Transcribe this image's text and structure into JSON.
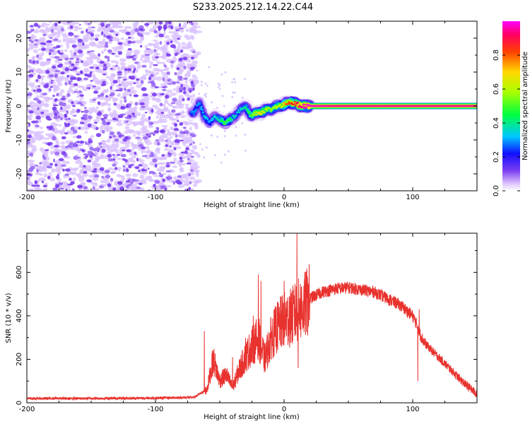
{
  "title": "S233.2025.212.14.22.C44",
  "colors": {
    "accent_line": "#e8322e",
    "scatter": "#7a3cf0",
    "background": "#ffffff"
  },
  "chart_data": [
    {
      "type": "heatmap",
      "xlabel": "Height of straight line (km)",
      "ylabel": "Frequency (Hz)",
      "xlim": [
        -200,
        150
      ],
      "ylim": [
        -25,
        25
      ],
      "xticks": [
        -200,
        -100,
        0,
        100
      ],
      "yticks": [
        -20,
        -10,
        0,
        10,
        20
      ],
      "xtick_labels": [
        "-200",
        "-100",
        "0",
        "100"
      ],
      "ytick_labels": [
        "-20",
        "-10",
        "0",
        "10",
        "20"
      ],
      "ridge": {
        "x": [
          -70,
          -66,
          -62,
          -58,
          -54,
          -50,
          -46,
          -42,
          -38,
          -34,
          -30,
          -26,
          -22,
          -18,
          -14,
          -10,
          -6,
          -2,
          2,
          6,
          10,
          14,
          20,
          40,
          60,
          80,
          100,
          120,
          150
        ],
        "y": [
          -2,
          1,
          -3,
          -5,
          -3,
          -4,
          -5,
          -4,
          -3,
          -1,
          0,
          -3,
          -2,
          -2,
          -1,
          -1,
          0,
          0,
          1,
          1,
          0.5,
          0,
          0,
          0,
          0,
          0,
          0,
          0,
          0
        ],
        "amp": [
          0.3,
          0.3,
          0.35,
          0.3,
          0.35,
          0.4,
          0.5,
          0.45,
          0.35,
          0.35,
          0.4,
          0.5,
          0.6,
          0.7,
          0.6,
          0.55,
          0.6,
          0.65,
          0.8,
          0.85,
          0.9,
          0.95,
          0.98,
          0.95,
          0.95,
          0.95,
          0.95,
          0.95,
          0.95
        ]
      },
      "noise_region": {
        "xmin": -200,
        "xmax": -70,
        "amp": 0.05
      },
      "colorbar": {
        "label": "Normalized spectral amplitude",
        "ticks": [
          0.0,
          0.2,
          0.4,
          0.6,
          0.8
        ],
        "tick_labels": [
          "0.0",
          "0.2",
          "0.4",
          "0.6",
          "0.8"
        ],
        "range": [
          0,
          1
        ]
      }
    },
    {
      "type": "line",
      "xlabel": "Height of straight line (km)",
      "ylabel": "SNR (10 * v/v)",
      "xlim": [
        -200,
        150
      ],
      "ylim": [
        0,
        780
      ],
      "xticks": [
        -200,
        -100,
        0,
        100
      ],
      "yticks": [
        0,
        200,
        400,
        600
      ],
      "xtick_labels": [
        "-200",
        "-100",
        "0",
        "100"
      ],
      "ytick_labels": [
        "0",
        "200",
        "400",
        "600"
      ],
      "envelope": {
        "x": [
          -200,
          -150,
          -100,
          -70,
          -60,
          -55,
          -50,
          -45,
          -40,
          -35,
          -30,
          -25,
          -20,
          -15,
          -10,
          -5,
          0,
          5,
          10,
          15,
          20,
          30,
          40,
          50,
          60,
          70,
          80,
          90,
          100,
          104,
          106,
          110,
          120,
          130,
          140,
          150
        ],
        "y": [
          20,
          20,
          22,
          25,
          60,
          200,
          100,
          130,
          70,
          150,
          210,
          260,
          300,
          200,
          300,
          350,
          380,
          390,
          420,
          440,
          480,
          510,
          525,
          530,
          520,
          510,
          480,
          450,
          400,
          350,
          310,
          270,
          210,
          150,
          90,
          40
        ]
      },
      "spikes": [
        {
          "x": -62,
          "y": 330
        },
        {
          "x": -55,
          "y": 230
        },
        {
          "x": -40,
          "y": 210
        },
        {
          "x": -30,
          "y": 300
        },
        {
          "x": -24,
          "y": 400
        },
        {
          "x": -20,
          "y": 590
        },
        {
          "x": -18,
          "y": 560
        },
        {
          "x": 0,
          "y": 560
        },
        {
          "x": 4,
          "y": 490
        },
        {
          "x": 10,
          "y": 780
        },
        {
          "x": 11,
          "y": 160
        },
        {
          "x": 104,
          "y": 100
        },
        {
          "x": 105,
          "y": 430
        }
      ]
    }
  ]
}
